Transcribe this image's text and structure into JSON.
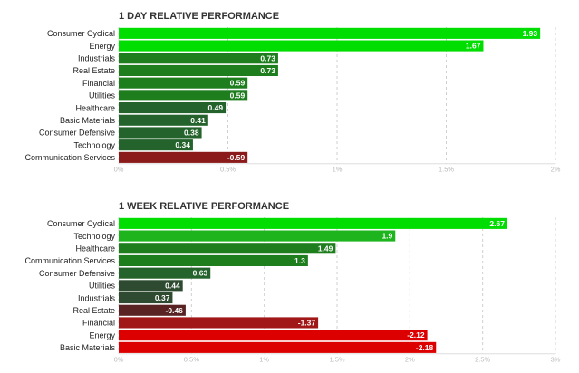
{
  "chart_data": [
    {
      "type": "bar",
      "orientation": "horizontal",
      "title": "1 DAY RELATIVE PERFORMANCE",
      "categories": [
        "Consumer Cyclical",
        "Energy",
        "Industrials",
        "Real Estate",
        "Financial",
        "Utilities",
        "Healthcare",
        "Basic Materials",
        "Consumer Defensive",
        "Technology",
        "Communication Services"
      ],
      "values": [
        1.93,
        1.67,
        0.73,
        0.73,
        0.59,
        0.59,
        0.49,
        0.41,
        0.38,
        0.34,
        -0.59
      ],
      "value_labels": [
        "1.93",
        "1.67",
        "0.73",
        "0.73",
        "0.59",
        "0.59",
        "0.49",
        "0.41",
        "0.38",
        "0.34",
        "-0.59"
      ],
      "xlim": [
        0,
        2
      ],
      "xticks": [
        "0%",
        "0.5%",
        "1%",
        "1.5%",
        "2%"
      ],
      "grid": true,
      "colors": [
        "#00dd00",
        "#00dd00",
        "#1e7e1e",
        "#1e7e1e",
        "#1e7e1e",
        "#1e7e1e",
        "#24632b",
        "#24632b",
        "#24632b",
        "#24632b",
        "#8b1a1a"
      ]
    },
    {
      "type": "bar",
      "orientation": "horizontal",
      "title": "1 WEEK RELATIVE PERFORMANCE",
      "categories": [
        "Consumer Cyclical",
        "Technology",
        "Healthcare",
        "Communication Services",
        "Consumer Defensive",
        "Utilities",
        "Industrials",
        "Real Estate",
        "Financial",
        "Energy",
        "Basic Materials"
      ],
      "values": [
        2.67,
        1.9,
        1.49,
        1.3,
        0.63,
        0.44,
        0.37,
        -0.46,
        -1.37,
        -2.12,
        -2.18
      ],
      "value_labels": [
        "2.67",
        "1.9",
        "1.49",
        "1.3",
        "0.63",
        "0.44",
        "0.37",
        "-0.46",
        "-1.37",
        "-2.12",
        "-2.18"
      ],
      "xlim": [
        0,
        3
      ],
      "xticks": [
        "0%",
        "0.5%",
        "1%",
        "1.5%",
        "2%",
        "2.5%",
        "3%"
      ],
      "grid": true,
      "colors": [
        "#00dd00",
        "#1eb41e",
        "#1e7e1e",
        "#1e7e1e",
        "#24632b",
        "#2e4a30",
        "#2e4a30",
        "#5a2323",
        "#a11616",
        "#dd0000",
        "#dd0000"
      ]
    }
  ]
}
